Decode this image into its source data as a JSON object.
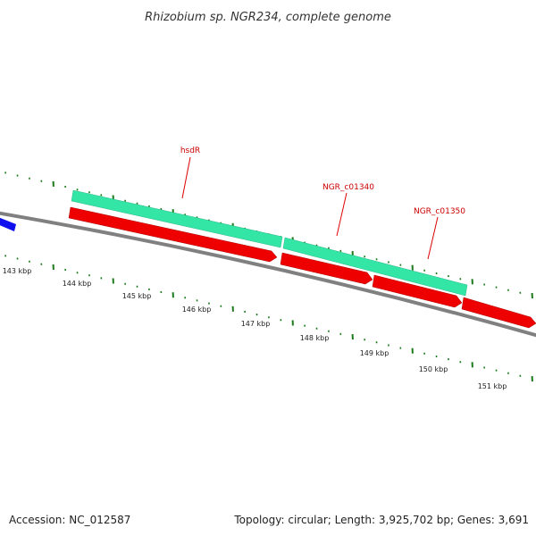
{
  "title": "Rhizobium sp. NGR234, complete genome",
  "footer": {
    "accession": "Accession: NC_012587",
    "stats": "Topology: circular; Length: 3,925,702 bp; Genes: 3,691"
  },
  "ruler": {
    "ticks": [
      "143 kbp",
      "144 kbp",
      "145 kbp",
      "146 kbp",
      "147 kbp",
      "148 kbp",
      "149 kbp",
      "150 kbp",
      "151 kbp"
    ]
  },
  "genes": {
    "labels": [
      "hsdR",
      "NGR_c01340",
      "NGR_c01350"
    ]
  },
  "colors": {
    "backbone": "#808080",
    "tick": "#1a7a1a",
    "gene_feature": "#33e6a6",
    "cds_feature": "#ee0000",
    "other_feature": "#1010ee",
    "label_line": "#dd0000"
  }
}
